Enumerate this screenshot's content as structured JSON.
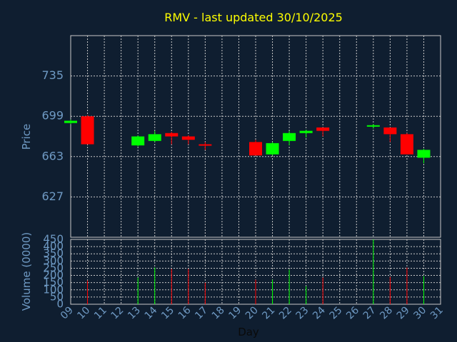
{
  "chart_data": {
    "type": "candlestick",
    "title": "RMV - last updated 30/10/2025",
    "ylabel": "Price",
    "volume_label": "Volume (0000)",
    "xlabel": "Day",
    "x_ticks": [
      "09",
      "10",
      "11",
      "12",
      "13",
      "14",
      "15",
      "16",
      "17",
      "18",
      "19",
      "20",
      "21",
      "22",
      "23",
      "24",
      "25",
      "26",
      "27",
      "28",
      "29",
      "30",
      "31"
    ],
    "price_ticks": [
      627,
      663,
      699,
      735
    ],
    "price_ylim": [
      591,
      771
    ],
    "volume_ticks": [
      0,
      50,
      100,
      150,
      200,
      250,
      300,
      350,
      400,
      450
    ],
    "volume_ylim": [
      0,
      450
    ],
    "up_color": "#00ff00",
    "down_color": "#ff0000",
    "grid": true,
    "candles": [
      {
        "day": "09",
        "open": 693,
        "close": 695,
        "high": 696,
        "low": 692,
        "volume": 0
      },
      {
        "day": "10",
        "open": 699,
        "close": 674,
        "high": 700,
        "low": 674,
        "volume": 165
      },
      {
        "day": "13",
        "open": 673,
        "close": 681,
        "high": 682,
        "low": 672,
        "volume": 185
      },
      {
        "day": "14",
        "open": 677,
        "close": 683,
        "high": 686,
        "low": 676,
        "volume": 255
      },
      {
        "day": "15",
        "open": 684,
        "close": 681,
        "high": 685,
        "low": 674,
        "volume": 245
      },
      {
        "day": "16",
        "open": 681,
        "close": 678,
        "high": 682,
        "low": 674,
        "volume": 245
      },
      {
        "day": "17",
        "open": 674,
        "close": 673,
        "high": 676,
        "low": 669,
        "volume": 150
      },
      {
        "day": "20",
        "open": 676,
        "close": 664,
        "high": 678,
        "low": 664,
        "volume": 170
      },
      {
        "day": "21",
        "open": 665,
        "close": 675,
        "high": 676,
        "low": 664,
        "volume": 170
      },
      {
        "day": "22",
        "open": 677,
        "close": 684,
        "high": 686,
        "low": 673,
        "volume": 240
      },
      {
        "day": "23",
        "open": 684,
        "close": 686,
        "high": 687,
        "low": 680,
        "volume": 125
      },
      {
        "day": "24",
        "open": 689,
        "close": 686,
        "high": 689,
        "low": 681,
        "volume": 185
      },
      {
        "day": "27",
        "open": 690,
        "close": 691,
        "high": 692,
        "low": 688,
        "volume": 450
      },
      {
        "day": "28",
        "open": 689,
        "close": 683,
        "high": 689,
        "low": 676,
        "volume": 190
      },
      {
        "day": "29",
        "open": 683,
        "close": 665,
        "high": 684,
        "low": 665,
        "volume": 255
      },
      {
        "day": "30",
        "open": 662,
        "close": 669,
        "high": 670,
        "low": 657,
        "volume": 195
      }
    ]
  }
}
